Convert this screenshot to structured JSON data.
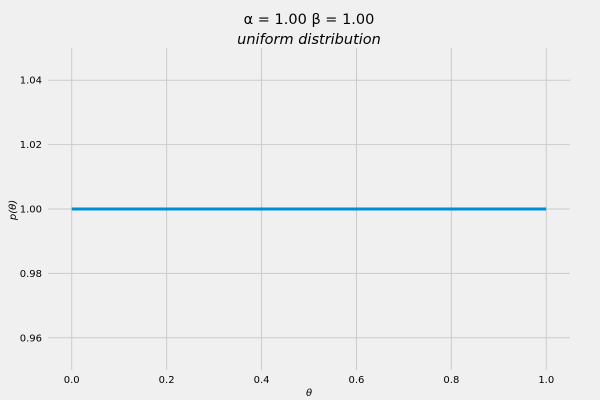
{
  "chart_data": {
    "type": "line",
    "title": "α = 1.00    β = 1.00",
    "subtitle": "uniform   distribution",
    "xlabel": "θ",
    "ylabel": "p(θ)",
    "x": [
      0.0,
      0.2,
      0.4,
      0.6,
      0.8,
      1.0
    ],
    "series": [
      {
        "values": [
          1.0,
          1.0,
          1.0,
          1.0,
          1.0,
          1.0
        ]
      }
    ],
    "xlim": [
      -0.05,
      1.05
    ],
    "ylim": [
      0.95,
      1.05
    ],
    "x_ticks": [
      0.0,
      0.2,
      0.4,
      0.6,
      0.8,
      1.0
    ],
    "x_tick_labels": [
      "0.0",
      "0.2",
      "0.4",
      "0.6",
      "0.8",
      "1.0"
    ],
    "y_ticks": [
      0.96,
      0.98,
      1.0,
      1.02,
      1.04
    ],
    "y_tick_labels": [
      "0.96",
      "0.98",
      "1.00",
      "1.02",
      "1.04"
    ],
    "grid": true,
    "colors": {
      "background": "#f0f0f0",
      "grid": "#cbcbcb",
      "line": "#008fd5",
      "text": "#000000"
    }
  }
}
